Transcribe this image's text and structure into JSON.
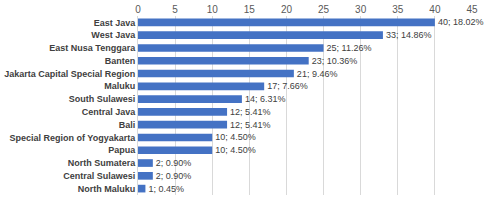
{
  "chart_data": {
    "type": "bar",
    "orientation": "horizontal",
    "categories": [
      "East Java",
      "West Java",
      "East Nusa Tenggara",
      "Banten",
      "Jakarta Capital Special Region",
      "Maluku",
      "South Sulawesi",
      "Central Java",
      "Bali",
      "Special Region of Yogyakarta",
      "Papua",
      "North Sumatera",
      "Central Sulawesi",
      "North Maluku"
    ],
    "values": [
      40,
      33,
      25,
      23,
      21,
      17,
      14,
      12,
      12,
      10,
      10,
      2,
      2,
      1
    ],
    "value_labels": [
      "40; 18.02%",
      "33; 14.86%",
      "25; 11.26%",
      "23; 10.36%",
      "21; 9.46%",
      "17; 7.66%",
      "14; 6.31%",
      "12; 5.41%",
      "12; 5.41%",
      "10; 4.50%",
      "10; 4.50%",
      "2; 0.90%",
      "2; 0.90%",
      "1; 0.45%"
    ],
    "color": "#4472c4",
    "xlim": [
      0,
      45
    ],
    "xticks": [
      0,
      5,
      10,
      15,
      20,
      25,
      30,
      35,
      40,
      45
    ],
    "grid": true,
    "data_labels": true
  }
}
